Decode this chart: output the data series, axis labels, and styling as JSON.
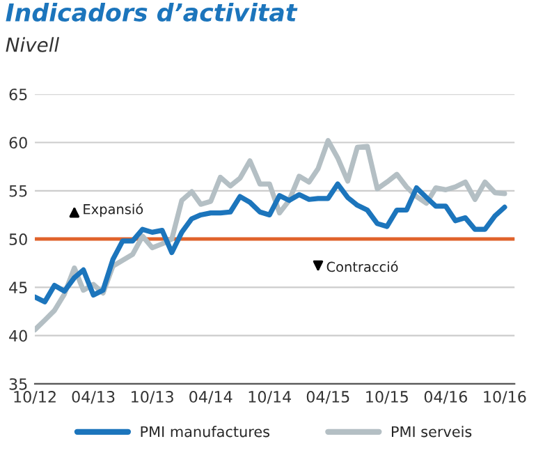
{
  "chart_data": {
    "type": "line",
    "title": "Indicadors d’activitat",
    "subtitle": "Nivell",
    "x": [
      "2012-10",
      "2012-11",
      "2012-12",
      "2013-01",
      "2013-02",
      "2013-03",
      "2013-04",
      "2013-05",
      "2013-06",
      "2013-07",
      "2013-08",
      "2013-09",
      "2013-10",
      "2013-11",
      "2013-12",
      "2014-01",
      "2014-02",
      "2014-03",
      "2014-04",
      "2014-05",
      "2014-06",
      "2014-07",
      "2014-08",
      "2014-09",
      "2014-10",
      "2014-11",
      "2014-12",
      "2015-01",
      "2015-02",
      "2015-03",
      "2015-04",
      "2015-05",
      "2015-06",
      "2015-07",
      "2015-08",
      "2015-09",
      "2015-10",
      "2015-11",
      "2015-12",
      "2016-01",
      "2016-02",
      "2016-03",
      "2016-04",
      "2016-05",
      "2016-06",
      "2016-07",
      "2016-08",
      "2016-09",
      "2016-10"
    ],
    "series": [
      {
        "name": "PMI serveis",
        "color": "#b4bfc4",
        "values": [
          40.6,
          41.6,
          42.6,
          44.3,
          47.0,
          44.7,
          45.3,
          44.4,
          47.2,
          47.8,
          48.4,
          50.3,
          49.1,
          49.5,
          50.0,
          54.0,
          54.9,
          53.6,
          53.9,
          56.4,
          55.5,
          56.3,
          58.1,
          55.7,
          55.7,
          52.7,
          54.0,
          56.5,
          55.9,
          57.3,
          60.2,
          58.4,
          56.0,
          59.5,
          59.6,
          55.2,
          55.9,
          56.7,
          55.4,
          54.4,
          53.7,
          55.3,
          55.1,
          55.4,
          55.9,
          54.1,
          55.9,
          54.8,
          54.7
        ]
      },
      {
        "name": "PMI manufactures",
        "color": "#1c75bc",
        "values": [
          44.0,
          43.5,
          45.2,
          44.6,
          46.0,
          46.8,
          44.2,
          44.7,
          47.9,
          49.8,
          49.8,
          51.0,
          50.7,
          50.9,
          48.6,
          50.7,
          52.1,
          52.5,
          52.7,
          52.7,
          52.8,
          54.4,
          53.8,
          52.8,
          52.5,
          54.5,
          54.0,
          54.6,
          54.1,
          54.2,
          54.2,
          55.7,
          54.3,
          53.5,
          53.0,
          51.6,
          51.3,
          53.0,
          53.0,
          55.3,
          54.3,
          53.4,
          53.4,
          51.9,
          52.2,
          51.0,
          51.0,
          52.4,
          53.3
        ]
      }
    ],
    "ylim": [
      35,
      65
    ],
    "yticks": [
      35,
      40,
      45,
      50,
      55,
      60,
      65
    ],
    "xlim": [
      "2012-10",
      "2016-11"
    ],
    "xticks": [
      {
        "value": "2012-10",
        "label": "10/12"
      },
      {
        "value": "2013-04",
        "label": "04/13"
      },
      {
        "value": "2013-10",
        "label": "10/13"
      },
      {
        "value": "2014-04",
        "label": "04/14"
      },
      {
        "value": "2014-10",
        "label": "10/14"
      },
      {
        "value": "2015-04",
        "label": "04/15"
      },
      {
        "value": "2015-10",
        "label": "10/15"
      },
      {
        "value": "2016-04",
        "label": "04/16"
      },
      {
        "value": "2016-10",
        "label": "10/16"
      }
    ],
    "ref_lines": [
      {
        "axis": "y",
        "value": 50,
        "label": null,
        "color": "#e0622a"
      }
    ],
    "annotations": [
      {
        "text": "Expansió",
        "x": "2013-02",
        "y": 53
      },
      {
        "text": "Contracció",
        "x": "2015-03",
        "y": 47
      }
    ],
    "grid": "y",
    "legend": "bottom",
    "marker": "none",
    "line_style": "solid"
  }
}
